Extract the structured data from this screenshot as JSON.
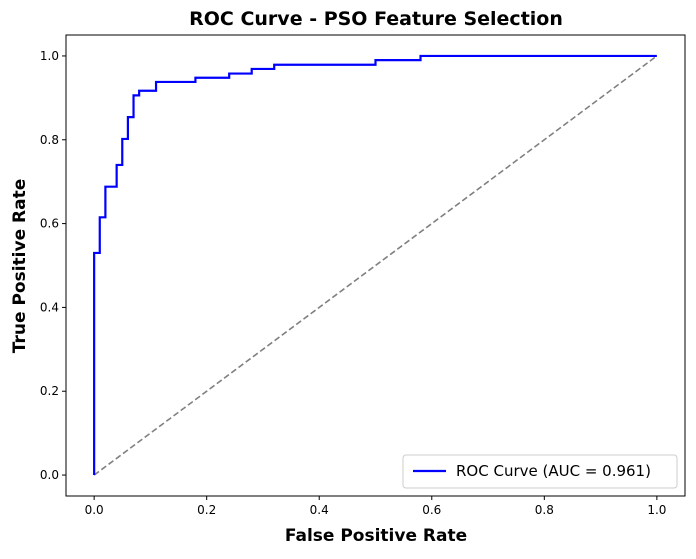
{
  "chart_data": {
    "type": "line",
    "title": "ROC Curve - PSO Feature Selection",
    "xlabel": "False Positive Rate",
    "ylabel": "True Positive Rate",
    "xlim": [
      -0.05,
      1.05
    ],
    "ylim": [
      -0.05,
      1.05
    ],
    "x_ticks": [
      "0.0",
      "0.2",
      "0.4",
      "0.6",
      "0.8",
      "1.0"
    ],
    "y_ticks": [
      "0.0",
      "0.2",
      "0.4",
      "0.6",
      "0.8",
      "1.0"
    ],
    "grid": false,
    "legend_position": "lower right",
    "series": [
      {
        "name": "ROC Curve (AUC = 0.961)",
        "color": "#0000ff",
        "style": "solid",
        "x": [
          0.0,
          0.0,
          0.01,
          0.01,
          0.02,
          0.02,
          0.04,
          0.04,
          0.05,
          0.05,
          0.06,
          0.06,
          0.07,
          0.07,
          0.08,
          0.08,
          0.11,
          0.11,
          0.18,
          0.18,
          0.24,
          0.24,
          0.28,
          0.28,
          0.32,
          0.32,
          0.5,
          0.5,
          0.58,
          0.58,
          1.0
        ],
        "y": [
          0.0,
          0.53,
          0.53,
          0.615,
          0.615,
          0.688,
          0.688,
          0.74,
          0.74,
          0.802,
          0.802,
          0.854,
          0.854,
          0.906,
          0.906,
          0.917,
          0.917,
          0.938,
          0.938,
          0.948,
          0.948,
          0.958,
          0.958,
          0.969,
          0.969,
          0.979,
          0.979,
          0.99,
          0.99,
          1.0,
          1.0
        ]
      },
      {
        "name": "",
        "color": "#808080",
        "style": "dashed",
        "x": [
          0.0,
          1.0
        ],
        "y": [
          0.0,
          1.0
        ]
      }
    ]
  }
}
